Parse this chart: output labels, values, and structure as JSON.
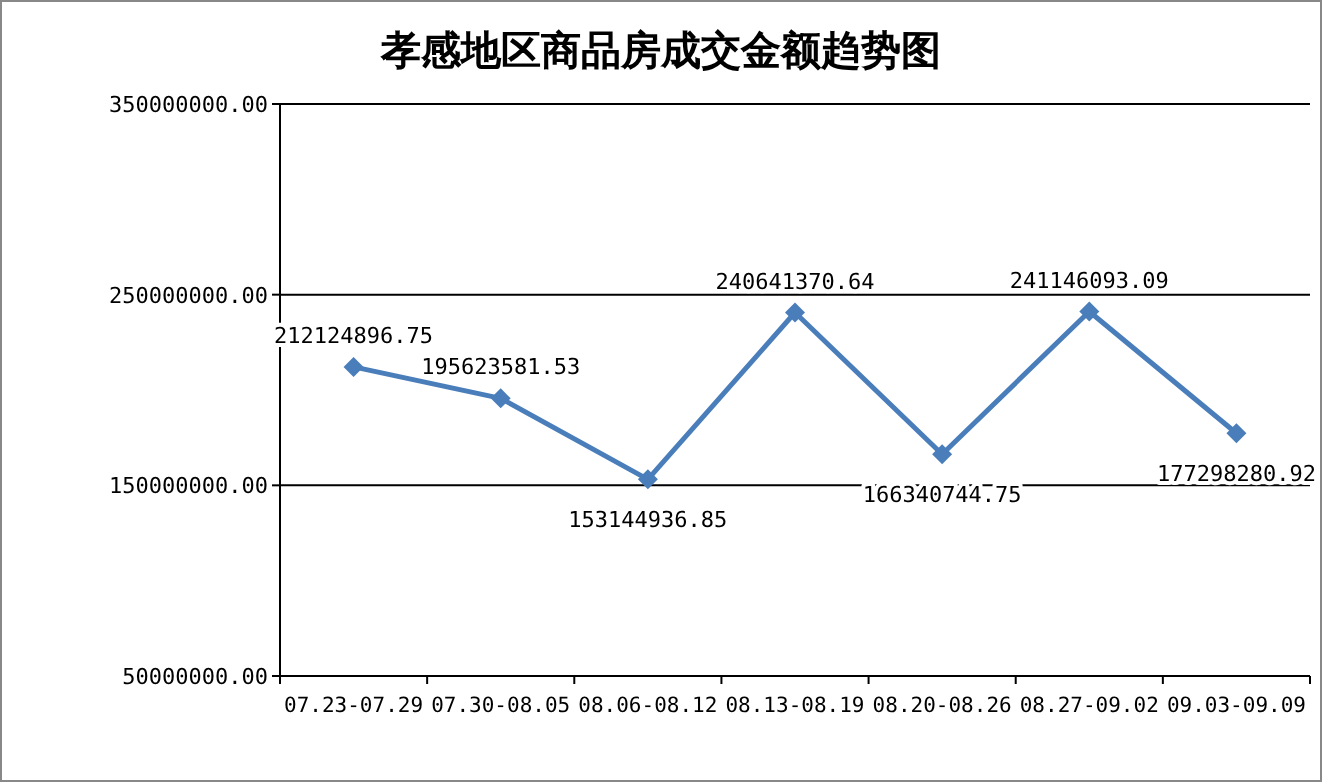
{
  "chart_data": {
    "type": "line",
    "title": "孝感地区商品房成交金额趋势图",
    "categories": [
      "07.23-07.29",
      "07.30-08.05",
      "08.06-08.12",
      "08.13-08.19",
      "08.20-08.26",
      "08.27-09.02",
      "09.03-09.09"
    ],
    "series": [
      {
        "color": "#4a7ebb",
        "values": [
          212124896.75,
          195623581.53,
          153144936.85,
          240641370.64,
          166340744.75,
          241146093.09,
          177298280.92
        ]
      }
    ],
    "ylim": [
      50000000,
      350000000
    ],
    "yticks": [
      {
        "value": 50000000,
        "label": "50000000.00"
      },
      {
        "value": 150000000,
        "label": "150000000.00"
      },
      {
        "value": 250000000,
        "label": "250000000.00"
      },
      {
        "value": 350000000,
        "label": "350000000.00"
      }
    ],
    "grid": "y",
    "marker": "diamond",
    "line_style": "solid",
    "data_labels": true
  }
}
